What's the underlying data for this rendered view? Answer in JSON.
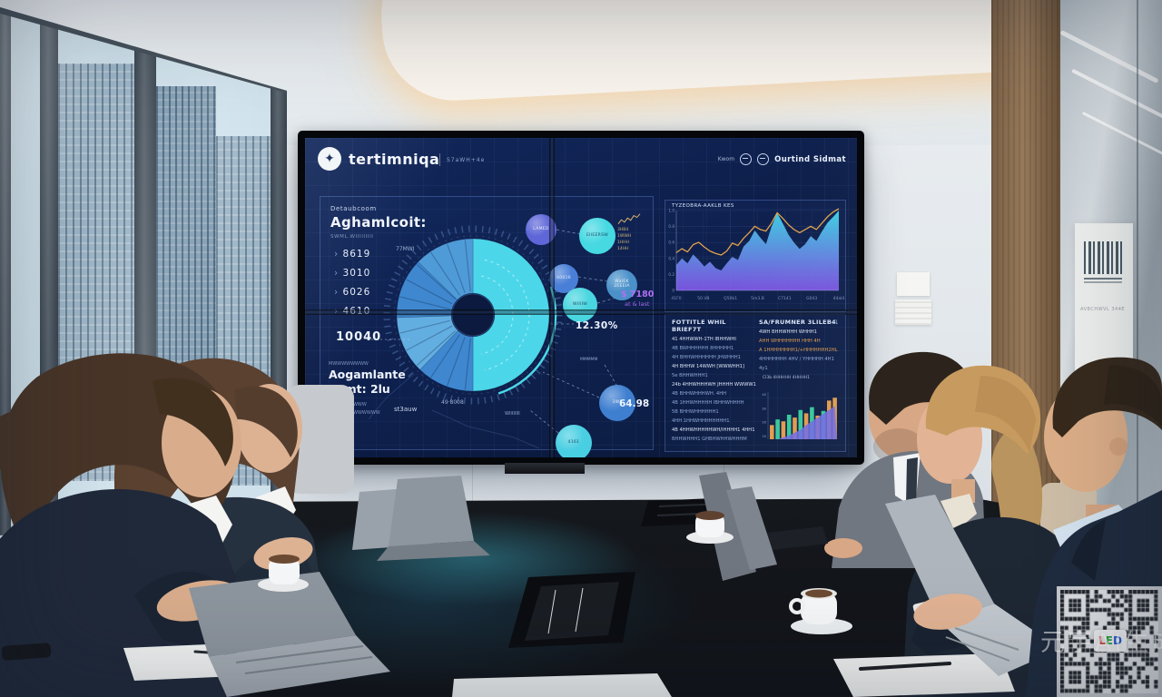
{
  "watermark": "元宇AI生成",
  "qr": {
    "led_l": "L",
    "led_e": "E",
    "led_d": "D"
  },
  "room": {
    "sign_caption": "AVBCHWVL 344E"
  },
  "colors": {
    "accent_cyan": "#4bd7e9",
    "accent_blue": "#3f88cf",
    "accent_indigo": "#5e66d8",
    "accent_orange": "#e09a4c",
    "accent_teal": "#35c79b",
    "accent_purple": "#7a5df0",
    "annotation_purple": "#b06ef0",
    "screen_bg": "#0d1f4a",
    "gold": "#d9b36a",
    "bar_overlay": "#6f6ae0"
  },
  "screen": {
    "brand": {
      "logo_icon": "pinwheel-icon",
      "name": "tertimniqa",
      "tagline": "S7aWH+4e"
    },
    "header_right": {
      "label": "Kwom",
      "icon1": "node-icon",
      "icon2": "globe-icon",
      "title": "Ourtind Sidmat"
    },
    "left_panel": {
      "kicker": "Detaubcoom",
      "title": "Aghamlcoit:",
      "subtitle": "SWML.WIIIIIIIII",
      "metrics": [
        "8619",
        "3010",
        "6026",
        "4610"
      ],
      "big_value": "10040",
      "tick_note": "77MWI",
      "purple_note": "$#JBBMW",
      "footer_kicker": "MWWWWWWWW",
      "footer_title1": "Aogamlante",
      "footer_title2": "Somt: 2lu",
      "footer_caption1": "BHWWWWWWW",
      "footer_caption2": "LWWWWWWWWWWW",
      "footer_value": "st3auw",
      "footer_value2": "49·8008"
    },
    "donut": {
      "hole_color": "#0b1a3e",
      "segments": [
        {
          "a0": -90,
          "a1": 90,
          "color": "#4bd7e9"
        },
        {
          "a0": 90,
          "a1": 134,
          "color": "#3f88cf"
        },
        {
          "a0": 134,
          "a1": 178,
          "color": "#63aee0"
        },
        {
          "a0": 178,
          "a1": 224,
          "color": "#3f88cf"
        },
        {
          "a0": 224,
          "a1": 270,
          "color": "#4f9bd8"
        }
      ]
    },
    "bubbles": [
      {
        "x": 260,
        "y": 101,
        "r": 17,
        "color": "#5e66d8",
        "label": "LAMED",
        "text": "light"
      },
      {
        "x": 322,
        "y": 108,
        "r": 20,
        "color": "#46d9e2",
        "label": "EIIEERSW",
        "text": "dark"
      },
      {
        "x": 285,
        "y": 155,
        "r": 16,
        "color": "#4a7fd8",
        "label": "60016",
        "text": "light"
      },
      {
        "x": 349,
        "y": 162,
        "r": 17,
        "color": "#4a90c9",
        "label": "WaIEK 2EEEIA",
        "text": "light"
      },
      {
        "x": 303,
        "y": 184,
        "r": 19,
        "color": "#49d6e0",
        "label": "WIIIIW",
        "text": "dark"
      },
      {
        "x": 344,
        "y": 292,
        "r": 20,
        "color": "#3f7fd0",
        "label": "3WP",
        "text": "light"
      },
      {
        "x": 296,
        "y": 336,
        "r": 20,
        "color": "#49cfe2",
        "label": "4161",
        "text": "dark"
      }
    ],
    "annotations": {
      "pct": "12.30%",
      "price_line1": "$ 7180",
      "price_line2": "at & last",
      "value2": "64.98",
      "small1": "WIIIIIIII",
      "small2": "MMMMM"
    },
    "sparkline": {
      "values": [
        0.1,
        0.45,
        0.25,
        0.6,
        0.4,
        0.8,
        0.65,
        0.95
      ],
      "rows": [
        "3HB4",
        "1WWH",
        "1HHH",
        "14HH"
      ]
    },
    "area_chart": {
      "title": "TYZEOBRA-AAKLB KES",
      "y_ticks": [
        "1.0",
        "0.8",
        "0.6",
        "0.4",
        "0.2",
        "0"
      ],
      "x_ticks": [
        "41F0",
        "50.VB",
        "Q50b1",
        "5m3.B",
        "C7141",
        "G043",
        "44al4"
      ],
      "area_values": [
        0.32,
        0.4,
        0.34,
        0.45,
        0.38,
        0.3,
        0.36,
        0.28,
        0.25,
        0.34,
        0.42,
        0.38,
        0.55,
        0.62,
        0.75,
        0.66,
        0.58,
        0.8,
        0.97,
        0.84,
        0.7,
        0.6,
        0.52,
        0.58,
        0.68,
        0.62,
        0.74,
        0.85,
        0.92,
        1.0
      ],
      "line_values": [
        0.45,
        0.5,
        0.46,
        0.55,
        0.58,
        0.52,
        0.47,
        0.44,
        0.42,
        0.47,
        0.57,
        0.54,
        0.63,
        0.7,
        0.78,
        0.74,
        0.72,
        0.82,
        0.95,
        0.88,
        0.8,
        0.74,
        0.7,
        0.74,
        0.78,
        0.74,
        0.82,
        0.9,
        0.96,
        1.0
      ],
      "area_top_color": "#3fd9e8",
      "area_bottom_color": "#8a5cf5",
      "line_color": "#e0a14c"
    },
    "tables": {
      "left": {
        "header": "FOTTITLE WHIL BRIEF7T",
        "rows": [
          {
            "text": "41  4HHWWH-1TH   IBHHWHI",
            "tone": "bright"
          },
          {
            "text": "4B  BWHHHHHH  8HHHHH1",
            "tone": "dim"
          },
          {
            "text": "4H  BHHWHHHHHH  JHWHHH1",
            "tone": "dim"
          },
          {
            "text": "4H  BHHW 14WWH  [WWWHH1]",
            "tone": "bright"
          },
          {
            "text": "5e  BHHWHHH1",
            "tone": "dim"
          },
          {
            "text": "24b 4HHWHHHWH JHHHH WWWW1",
            "tone": "bright"
          },
          {
            "text": "4B  BHHWHHHWH. 4HH",
            "tone": "dim"
          },
          {
            "text": "4B  1HHWHHHHH  IBHHWHHHH",
            "tone": "dim"
          },
          {
            "text": "5B  BHHWHHHHHH1",
            "tone": "dim"
          },
          {
            "text": "4HH 1HHWHHHHHHHH1",
            "tone": "dim"
          },
          {
            "text": "4B  4HHWHHHHHWH/IHHHH1 4HH1",
            "tone": "bright"
          },
          {
            "text": "BHHWHHH1  GHBHWHHWHHHM",
            "tone": "dim"
          }
        ]
      },
      "right": {
        "header": "SA/FRUMNER 3LILEB4",
        "corner": "d1",
        "rows": [
          {
            "text": "4WH BHHWHHH WHHH1",
            "tone": "bright"
          },
          {
            "text": "AHH WHHHHHHH HHH 4H",
            "tone": "orange"
          },
          {
            "text": "A 1HHHHHHHH1/+HHHHHHH2HL",
            "tone": "orange"
          },
          {
            "text": "4HHHHHHH 4HV / YHHHHH 4H1",
            "tone": "dim"
          },
          {
            "text": "4y1",
            "tone": "dim"
          }
        ],
        "chart_label": "Cl3b 4HHHHH 4HHHH1"
      }
    },
    "mini_bars": {
      "values": [
        0.3,
        0.42,
        0.38,
        0.52,
        0.46,
        0.62,
        0.55,
        0.68,
        0.5,
        0.6,
        0.82,
        0.88
      ],
      "colors": [
        "orange",
        "teal",
        "orange",
        "teal",
        "orange",
        "teal",
        "orange",
        "teal",
        "orange",
        "teal",
        "orange",
        "orange"
      ],
      "overlay": [
        0,
        0,
        0.04,
        0.08,
        0.14,
        0.2,
        0.3,
        0.38,
        0.46,
        0.54,
        0.62,
        0.7
      ],
      "axis_labels": [
        "4B",
        "3B",
        "2B",
        "1B"
      ]
    }
  }
}
